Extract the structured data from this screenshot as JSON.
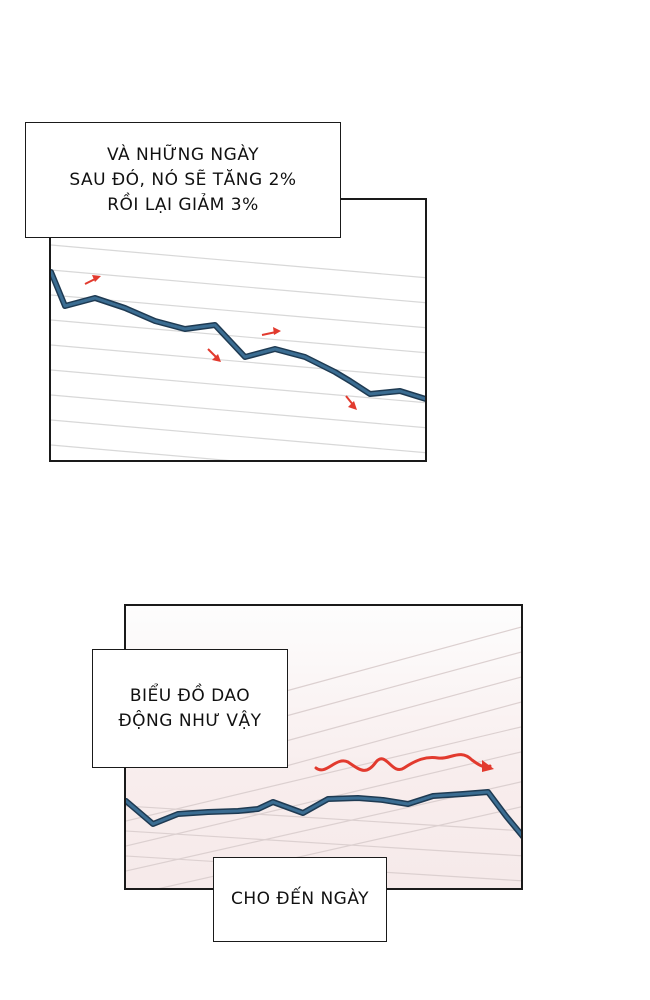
{
  "captions": {
    "caption_1": [
      "VÀ NHỮNG NGÀY",
      "SAU ĐÓ, NÓ SẼ TĂNG 2%",
      "RỒI LẠI GIẢM 3%"
    ],
    "caption_2": [
      "BIỂU ĐỒ DAO",
      "ĐỘNG NHƯ VẬY"
    ],
    "caption_3": [
      "CHO ĐẾN NGÀY"
    ]
  },
  "colors": {
    "line": "#2f5878",
    "arrow": "#e23a2e",
    "grid": "#d6d6d6",
    "border": "#1a1a1a"
  }
}
